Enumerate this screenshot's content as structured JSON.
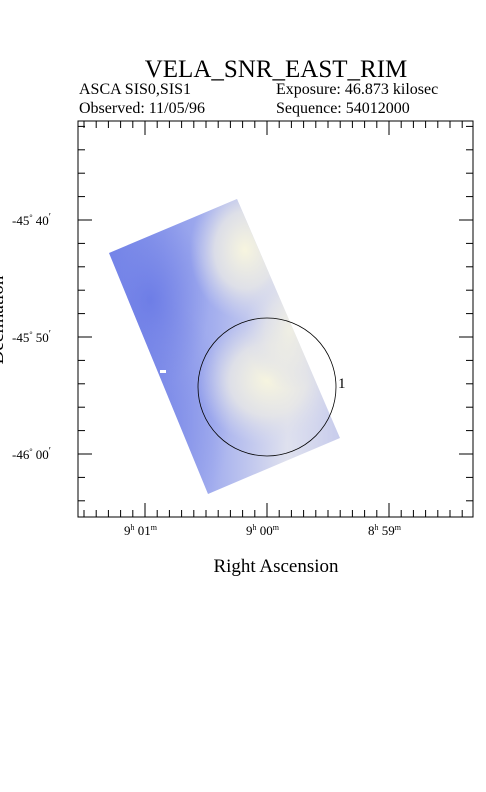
{
  "header": {
    "title": "VELA_SNR_EAST_RIM",
    "instrument": "ASCA SIS0,SIS1",
    "observed": "Observed: 11/05/96",
    "exposure": "Exposure: 46.873 kilosec",
    "sequence": "Sequence: 54012000"
  },
  "axes": {
    "x_label": "Right Ascension",
    "y_label": "Declination",
    "x_ticks": [
      {
        "h": "9",
        "m": "01"
      },
      {
        "h": "9",
        "m": "00"
      },
      {
        "h": "8",
        "m": "59"
      }
    ],
    "y_ticks": [
      {
        "deg": "-45",
        "min": "40"
      },
      {
        "deg": "-45",
        "min": "50"
      },
      {
        "deg": "-46",
        "min": "00"
      }
    ]
  },
  "region": {
    "label": "1"
  },
  "colors": {
    "image_edge": "#6f7fe6",
    "image_core": "#f2f2e2",
    "image_mid": "#c8cde8"
  }
}
